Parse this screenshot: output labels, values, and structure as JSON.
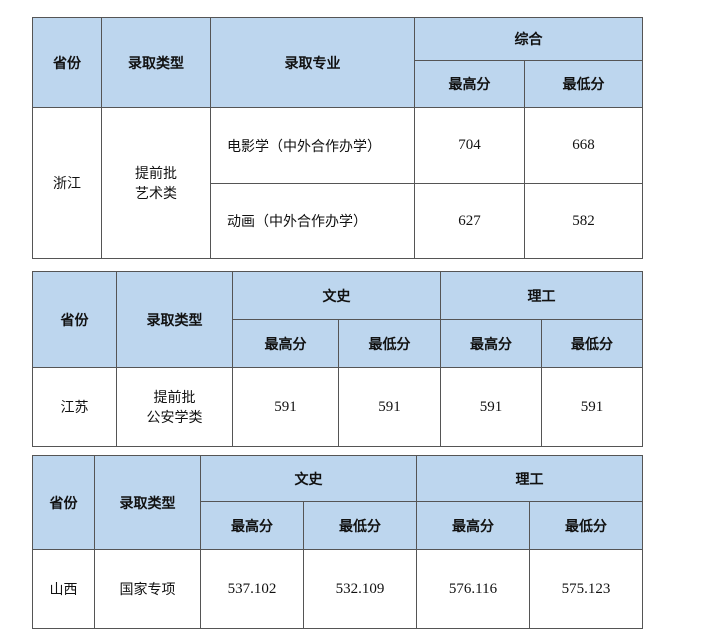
{
  "table1": {
    "h_province": "省份",
    "h_type": "录取类型",
    "h_major": "录取专业",
    "h_group": "综合",
    "h_max": "最高分",
    "h_min": "最低分",
    "province": "浙江",
    "type_line1": "提前批",
    "type_line2": "艺术类",
    "rows": [
      {
        "major": "电影学（中外合作办学）",
        "max": "704",
        "min": "668"
      },
      {
        "major": "动画（中外合作办学）",
        "max": "627",
        "min": "582"
      }
    ]
  },
  "table2": {
    "h_province": "省份",
    "h_type": "录取类型",
    "h_group1": "文史",
    "h_group2": "理工",
    "h_max": "最高分",
    "h_min": "最低分",
    "province": "江苏",
    "type_line1": "提前批",
    "type_line2": "公安学类",
    "values": [
      "591",
      "591",
      "591",
      "591"
    ]
  },
  "table3": {
    "h_province": "省份",
    "h_type": "录取类型",
    "h_group1": "文史",
    "h_group2": "理工",
    "h_max": "最高分",
    "h_min": "最低分",
    "province": "山西",
    "type": "国家专项",
    "values": [
      "537.102",
      "532.109",
      "576.116",
      "575.123"
    ]
  }
}
